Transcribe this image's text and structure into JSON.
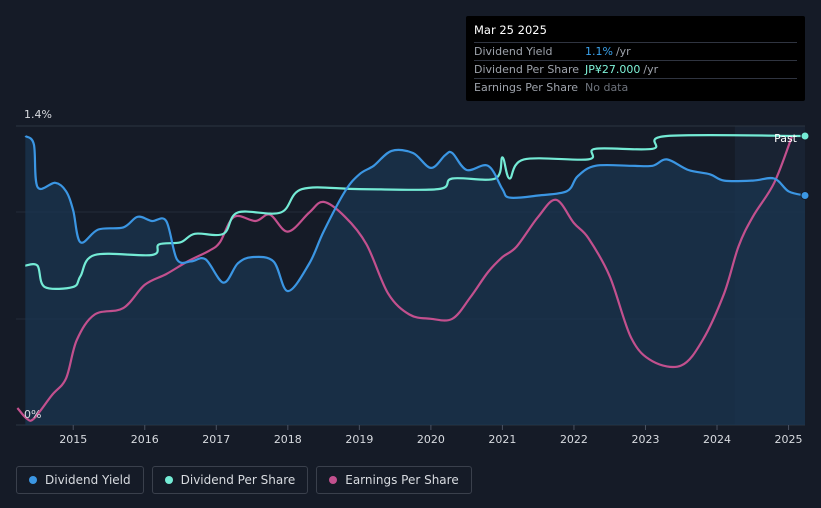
{
  "tooltip": {
    "date": "Mar 25 2025",
    "rows": [
      {
        "label": "Dividend Yield",
        "value": "1.1%",
        "unit": "/yr",
        "color": "#3ba3ec"
      },
      {
        "label": "Dividend Per Share",
        "value": "JP¥27.000",
        "unit": "/yr",
        "color": "#7ef3d8"
      },
      {
        "label": "Earnings Per Share",
        "value": "No data",
        "unit": "",
        "color": "#6d727b"
      }
    ]
  },
  "colors": {
    "background": "#151b27",
    "dividend_yield": "#3b96e3",
    "dividend_per_share": "#74ebd5",
    "earnings_per_share": "#c2508e",
    "fill": "#1a3550"
  },
  "legend": [
    {
      "label": "Dividend Yield",
      "color": "#3b96e3"
    },
    {
      "label": "Dividend Per Share",
      "color": "#74ebd5"
    },
    {
      "label": "Earnings Per Share",
      "color": "#c2508e"
    }
  ],
  "chart_data": {
    "type": "line",
    "y_axis_labels": [
      "1.4%",
      "0%"
    ],
    "ylim": [
      0,
      1.4
    ],
    "xlim": [
      2014.2,
      2025.23
    ],
    "x_ticks": [
      "2015",
      "2016",
      "2017",
      "2018",
      "2019",
      "2020",
      "2021",
      "2022",
      "2023",
      "2024",
      "2025"
    ],
    "past_label": "Past",
    "series": [
      {
        "name": "Dividend Yield",
        "unit": "%",
        "points": [
          [
            2014.33,
            1.36
          ],
          [
            2014.45,
            1.32
          ],
          [
            2014.5,
            1.12
          ],
          [
            2014.75,
            1.14
          ],
          [
            2014.9,
            1.1
          ],
          [
            2015.0,
            1.01
          ],
          [
            2015.1,
            0.86
          ],
          [
            2015.35,
            0.92
          ],
          [
            2015.7,
            0.93
          ],
          [
            2015.9,
            0.98
          ],
          [
            2016.1,
            0.96
          ],
          [
            2016.3,
            0.96
          ],
          [
            2016.45,
            0.78
          ],
          [
            2016.65,
            0.77
          ],
          [
            2016.85,
            0.78
          ],
          [
            2017.1,
            0.67
          ],
          [
            2017.3,
            0.76
          ],
          [
            2017.5,
            0.79
          ],
          [
            2017.8,
            0.77
          ],
          [
            2018.0,
            0.63
          ],
          [
            2018.3,
            0.76
          ],
          [
            2018.5,
            0.91
          ],
          [
            2018.8,
            1.1
          ],
          [
            2019.0,
            1.18
          ],
          [
            2019.2,
            1.22
          ],
          [
            2019.45,
            1.29
          ],
          [
            2019.75,
            1.28
          ],
          [
            2020.0,
            1.21
          ],
          [
            2020.2,
            1.27
          ],
          [
            2020.3,
            1.28
          ],
          [
            2020.5,
            1.2
          ],
          [
            2020.8,
            1.22
          ],
          [
            2021.0,
            1.11
          ],
          [
            2021.1,
            1.07
          ],
          [
            2021.5,
            1.08
          ],
          [
            2021.9,
            1.1
          ],
          [
            2022.05,
            1.17
          ],
          [
            2022.3,
            1.22
          ],
          [
            2022.8,
            1.22
          ],
          [
            2023.1,
            1.22
          ],
          [
            2023.3,
            1.25
          ],
          [
            2023.6,
            1.2
          ],
          [
            2023.9,
            1.18
          ],
          [
            2024.1,
            1.15
          ],
          [
            2024.5,
            1.15
          ],
          [
            2024.8,
            1.16
          ],
          [
            2025.0,
            1.1
          ],
          [
            2025.23,
            1.08
          ]
        ]
      },
      {
        "name": "Dividend Per Share",
        "unit": "JP¥",
        "points": [
          [
            2014.33,
            0.75
          ],
          [
            2014.5,
            0.75
          ],
          [
            2014.6,
            0.65
          ],
          [
            2015.0,
            0.65
          ],
          [
            2015.1,
            0.7
          ],
          [
            2015.3,
            0.8
          ],
          [
            2016.1,
            0.8
          ],
          [
            2016.2,
            0.85
          ],
          [
            2016.5,
            0.86
          ],
          [
            2016.7,
            0.9
          ],
          [
            2017.1,
            0.9
          ],
          [
            2017.3,
            1.0
          ],
          [
            2017.9,
            1.0
          ],
          [
            2018.2,
            1.11
          ],
          [
            2019.0,
            1.11
          ],
          [
            2020.1,
            1.11
          ],
          [
            2020.3,
            1.16
          ],
          [
            2020.9,
            1.16
          ],
          [
            2021.0,
            1.26
          ],
          [
            2021.1,
            1.16
          ],
          [
            2021.3,
            1.25
          ],
          [
            2022.2,
            1.25
          ],
          [
            2022.3,
            1.3
          ],
          [
            2023.1,
            1.3
          ],
          [
            2023.3,
            1.36
          ],
          [
            2025.23,
            1.36
          ]
        ]
      },
      {
        "name": "Earnings Per Share",
        "unit": "JP¥",
        "points": [
          [
            2014.22,
            0.08
          ],
          [
            2014.35,
            0.03
          ],
          [
            2014.45,
            0.03
          ],
          [
            2014.7,
            0.14
          ],
          [
            2014.9,
            0.22
          ],
          [
            2015.05,
            0.4
          ],
          [
            2015.3,
            0.52
          ],
          [
            2015.7,
            0.55
          ],
          [
            2016.0,
            0.66
          ],
          [
            2016.3,
            0.71
          ],
          [
            2016.6,
            0.77
          ],
          [
            2016.9,
            0.82
          ],
          [
            2017.05,
            0.86
          ],
          [
            2017.25,
            0.98
          ],
          [
            2017.55,
            0.96
          ],
          [
            2017.75,
            0.99
          ],
          [
            2018.0,
            0.91
          ],
          [
            2018.3,
            1.0
          ],
          [
            2018.5,
            1.05
          ],
          [
            2018.8,
            0.98
          ],
          [
            2019.1,
            0.85
          ],
          [
            2019.4,
            0.62
          ],
          [
            2019.7,
            0.52
          ],
          [
            2020.0,
            0.5
          ],
          [
            2020.3,
            0.5
          ],
          [
            2020.55,
            0.6
          ],
          [
            2020.8,
            0.72
          ],
          [
            2021.0,
            0.79
          ],
          [
            2021.2,
            0.84
          ],
          [
            2021.5,
            0.98
          ],
          [
            2021.75,
            1.06
          ],
          [
            2022.0,
            0.95
          ],
          [
            2022.2,
            0.88
          ],
          [
            2022.5,
            0.7
          ],
          [
            2022.8,
            0.41
          ],
          [
            2023.1,
            0.3
          ],
          [
            2023.5,
            0.28
          ],
          [
            2023.8,
            0.4
          ],
          [
            2024.1,
            0.62
          ],
          [
            2024.3,
            0.84
          ],
          [
            2024.5,
            0.98
          ],
          [
            2024.8,
            1.14
          ],
          [
            2025.05,
            1.36
          ]
        ]
      }
    ],
    "forecast_from": 2024.25
  }
}
